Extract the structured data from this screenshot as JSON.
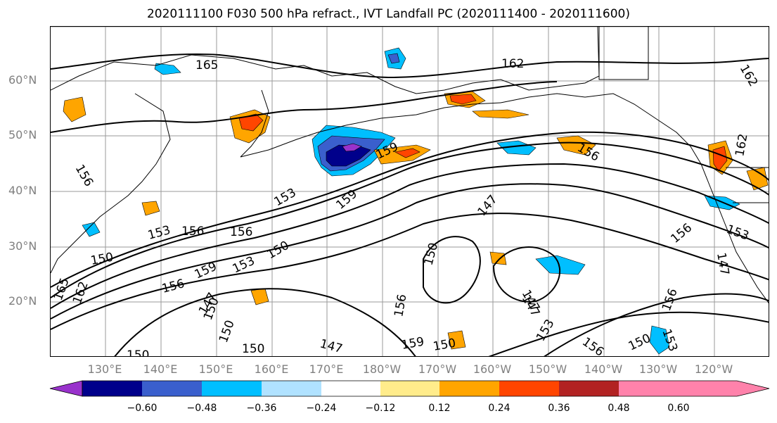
{
  "title": "2020111100 F030 500 hPa refract., IVT Landfall PC (2020111400 - 2020111600)",
  "map": {
    "lat_ticks": [
      "60°N",
      "50°N",
      "40°N",
      "30°N",
      "20°N"
    ],
    "lon_ticks": [
      "130°E",
      "140°E",
      "150°E",
      "160°E",
      "170°E",
      "180°W",
      "170°W",
      "160°W",
      "150°W",
      "140°W",
      "130°W",
      "120°W"
    ],
    "contour_labels": [
      "165",
      "162",
      "162",
      "156",
      "159",
      "156",
      "153",
      "159",
      "153",
      "156",
      "156",
      "150",
      "150",
      "159",
      "153",
      "150",
      "156",
      "147",
      "150",
      "156",
      "150",
      "147",
      "159",
      "150",
      "150",
      "147",
      "156",
      "150",
      "153",
      "156",
      "156",
      "153",
      "147",
      "162",
      "165",
      "150",
      "153",
      "147",
      "147",
      "162"
    ]
  },
  "colorbar": {
    "ticks": [
      "−0.60",
      "−0.48",
      "−0.36",
      "−0.24",
      "−0.12",
      "0.12",
      "0.24",
      "0.36",
      "0.48",
      "0.60"
    ],
    "colors": [
      "#9932cc",
      "#00008b",
      "#3a5fcd",
      "#00bfff",
      "#b0e2ff",
      "#ffffff",
      "#ffec8b",
      "#ffa500",
      "#ff4500",
      "#b22222",
      "#ff82ab"
    ]
  }
}
